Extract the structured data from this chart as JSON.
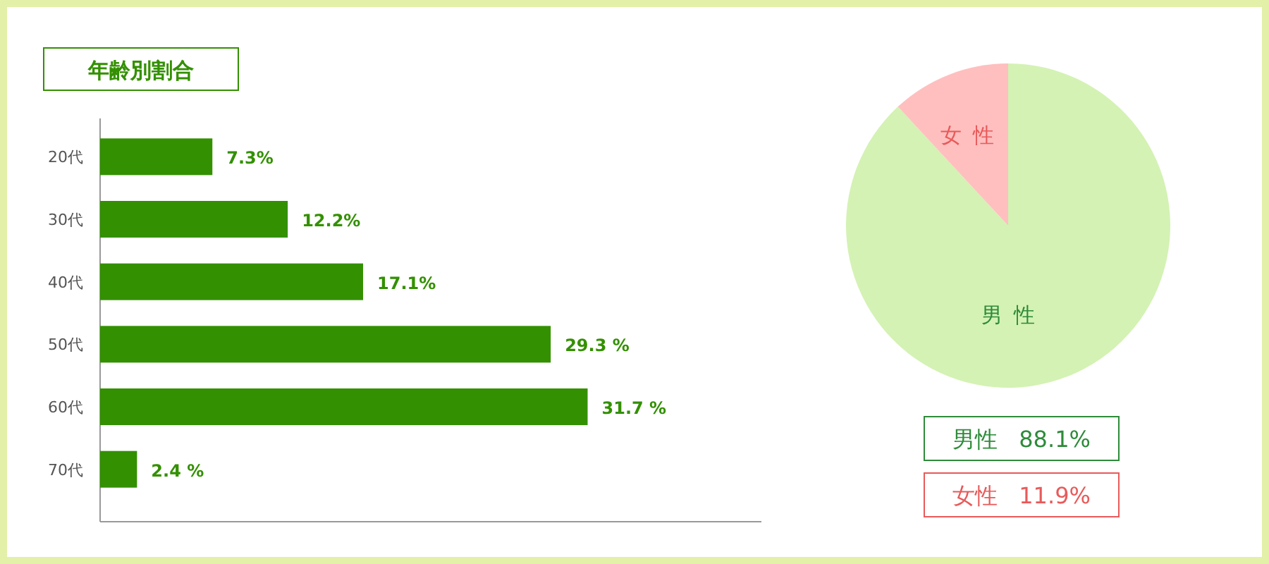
{
  "chart_data": [
    {
      "type": "bar",
      "orientation": "horizontal",
      "title": "年齢別割合",
      "categories": [
        "20代",
        "30代",
        "40代",
        "50代",
        "60代",
        "70代"
      ],
      "values": [
        7.3,
        12.2,
        17.1,
        29.3,
        31.7,
        2.4
      ],
      "value_labels": [
        "7.3%",
        "12.2%",
        "17.1%",
        "29.3 %",
        "31.7 %",
        "2.4 %"
      ],
      "color": "#339000",
      "xlim": [
        0,
        43
      ]
    },
    {
      "type": "pie",
      "categories": [
        "男性",
        "女性"
      ],
      "values": [
        88.1,
        11.9
      ],
      "colors": [
        "#d4f2b4",
        "#ffbfbf"
      ],
      "annotations": [
        "男性 88.1%",
        "女性 11.9%"
      ]
    }
  ]
}
